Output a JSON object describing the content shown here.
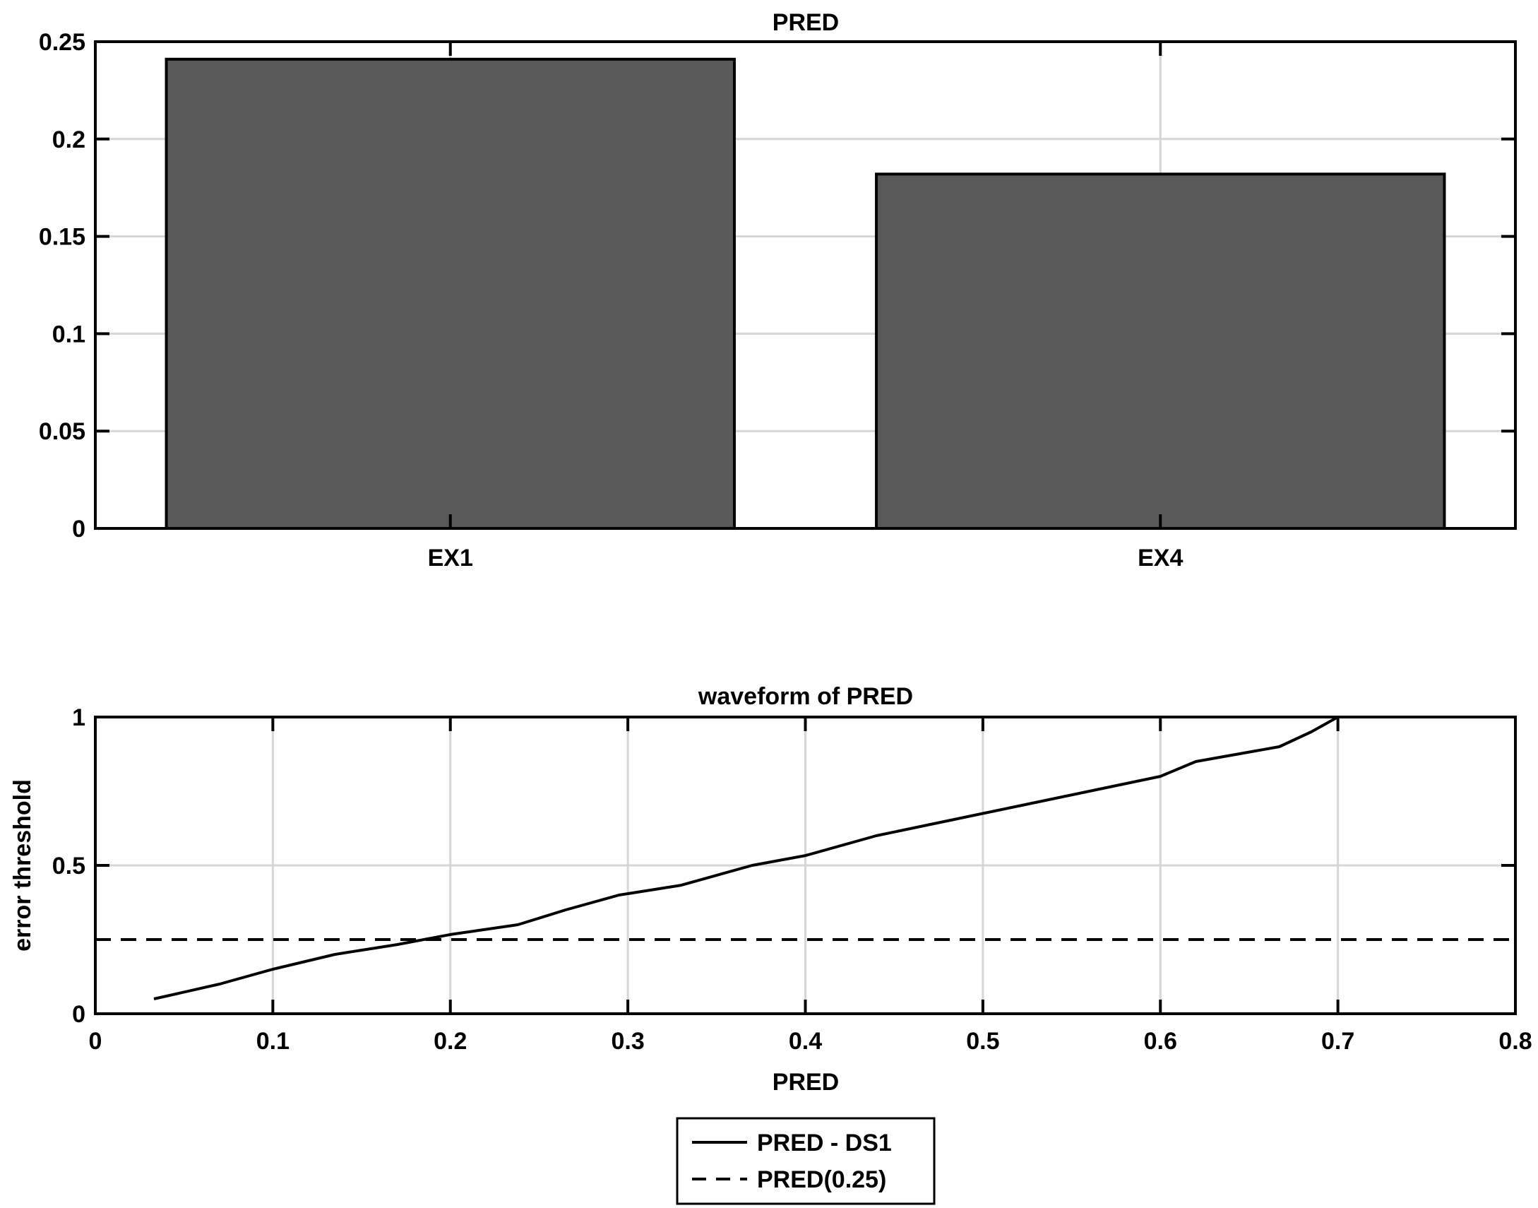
{
  "chart_data": [
    {
      "type": "bar",
      "title": "PRED",
      "xlabel": "",
      "ylabel": "",
      "categories": [
        "EX1",
        "EX4"
      ],
      "values": [
        0.241,
        0.182
      ],
      "ylim": [
        0,
        0.25
      ],
      "yticks": [
        0,
        0.05,
        0.1,
        0.15,
        0.2,
        0.25
      ],
      "ytick_labels": [
        "0",
        "0.05",
        "0.1",
        "0.15",
        "0.2",
        "0.25"
      ],
      "grid": true,
      "bar_color": "#595959"
    },
    {
      "type": "line",
      "title": "waveform of PRED",
      "xlabel": "PRED",
      "ylabel": "error threshold",
      "xlim": [
        0,
        0.8
      ],
      "ylim": [
        0,
        1
      ],
      "xticks": [
        0,
        0.1,
        0.2,
        0.3,
        0.4,
        0.5,
        0.6,
        0.7,
        0.8
      ],
      "xtick_labels": [
        "0",
        "0.1",
        "0.2",
        "0.3",
        "0.4",
        "0.5",
        "0.6",
        "0.7",
        "0.8"
      ],
      "yticks": [
        0,
        0.5,
        1
      ],
      "ytick_labels": [
        "0",
        "0.5",
        "1"
      ],
      "grid": true,
      "legend_position": "bottom-center",
      "series": [
        {
          "name": "PRED - DS1",
          "style": "solid",
          "x": [
            0.033,
            0.07,
            0.1,
            0.135,
            0.17,
            0.2,
            0.238,
            0.265,
            0.295,
            0.33,
            0.37,
            0.4,
            0.44,
            0.48,
            0.52,
            0.56,
            0.6,
            0.62,
            0.667,
            0.685,
            0.7
          ],
          "y": [
            0.05,
            0.1,
            0.15,
            0.2,
            0.233,
            0.267,
            0.3,
            0.35,
            0.4,
            0.433,
            0.5,
            0.533,
            0.6,
            0.65,
            0.7,
            0.75,
            0.8,
            0.85,
            0.9,
            0.95,
            1.0
          ]
        },
        {
          "name": "PRED(0.25)",
          "style": "dashed",
          "x": [
            0,
            0.8
          ],
          "y": [
            0.25,
            0.25
          ]
        }
      ]
    }
  ]
}
